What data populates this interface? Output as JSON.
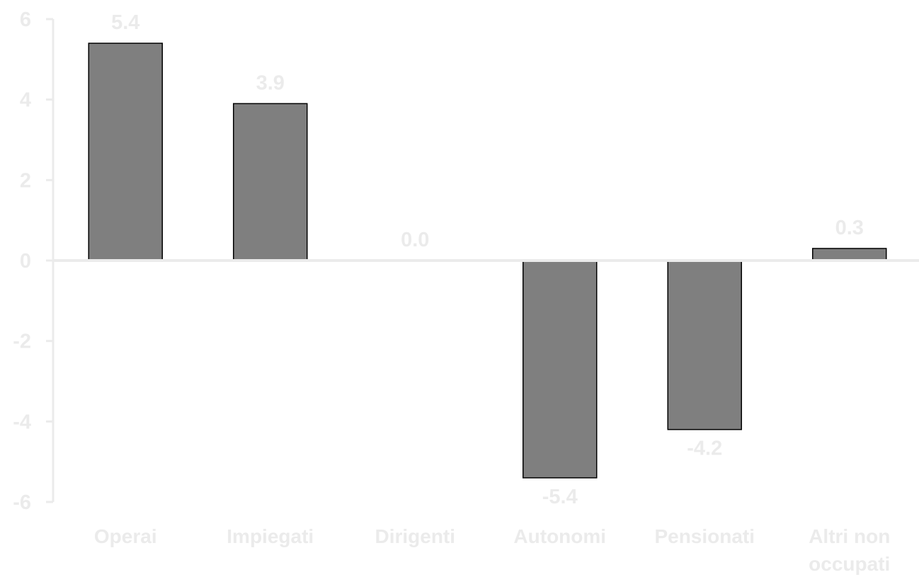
{
  "chart_data": {
    "type": "bar",
    "title": "",
    "xlabel": "",
    "ylabel": "",
    "categories": [
      "Operai",
      "Impiegati",
      "Dirigenti",
      "Autonomi",
      "Pensionati",
      "Altri non occupati"
    ],
    "category_lines": [
      [
        "Operai"
      ],
      [
        "Impiegati"
      ],
      [
        "Dirigenti"
      ],
      [
        "Autonomi"
      ],
      [
        "Pensionati"
      ],
      [
        "Altri non",
        "occupati"
      ]
    ],
    "values": [
      5.4,
      3.9,
      0.0,
      -5.4,
      -4.2,
      0.3
    ],
    "data_labels": [
      "5.4",
      "3.9",
      "0.0",
      "-5.4",
      "-4.2",
      "0.3"
    ],
    "ylim": [
      -6,
      6
    ],
    "yticks": [
      6,
      4,
      2,
      0,
      -2,
      -4,
      -6
    ],
    "ytick_labels": [
      "6",
      "4",
      "2",
      "0",
      "-2",
      "-4",
      "-6"
    ],
    "grid": false,
    "legend": "none",
    "colors": {
      "bar_fill": "#7f7f7f",
      "bar_stroke": "#000000",
      "axis": "#ebebeb",
      "text": "#ebebeb",
      "background": "#ffffff"
    }
  }
}
